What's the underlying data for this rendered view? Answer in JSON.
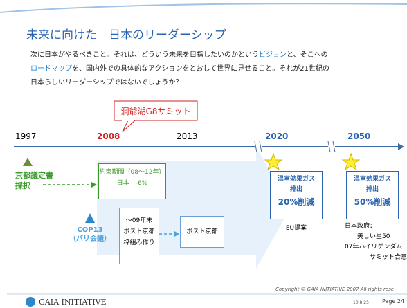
{
  "title": "未来に向けた　日本のリーダーシップ",
  "intro": {
    "lines": [
      [
        {
          "text": "次に日本がやるべきこと。それは、どういう未来を目指したいのかという"
        },
        {
          "text": "ビジョン",
          "hl": true
        },
        {
          "text": "と、そこへの"
        }
      ],
      [
        {
          "text": "ロードマップ",
          "hl": true
        },
        {
          "text": "を、国内外での具体的なアクションをとおして世界に見せること。それが21世紀の"
        }
      ],
      [
        {
          "text": "日本らしいリーダーシップではないでしょうか？"
        }
      ]
    ]
  },
  "callout": "洞爺湖G8サミット",
  "years": [
    "1997",
    "2008",
    "2013",
    "2020",
    "2050"
  ],
  "kyoto": [
    "京都議定書",
    "採択"
  ],
  "commitment": [
    "約束期間（08～12年）",
    "日本　-6%"
  ],
  "cop13": [
    "COP13",
    "（バリ会議）"
  ],
  "framework": [
    "～09年末",
    "ポスト京都",
    "枠組み作り"
  ],
  "post_kyoto": "ポスト京都",
  "target_2020": [
    "温室効果ガス",
    "排出",
    "20%削減"
  ],
  "note_2020": "EU提案",
  "target_2050": [
    "温室効果ガス",
    "排出",
    "50%削減"
  ],
  "note_2050": [
    "日本政府：",
    "美しい星50",
    "07年ハイリゲンダム",
    "サミット合意"
  ],
  "footer": {
    "logo": "GAIA INITIATIVE",
    "copyright": "Copyright © GAIA INITIATIVE 2007 All rights rese",
    "date": "10.8.25",
    "page": "Page 24"
  }
}
